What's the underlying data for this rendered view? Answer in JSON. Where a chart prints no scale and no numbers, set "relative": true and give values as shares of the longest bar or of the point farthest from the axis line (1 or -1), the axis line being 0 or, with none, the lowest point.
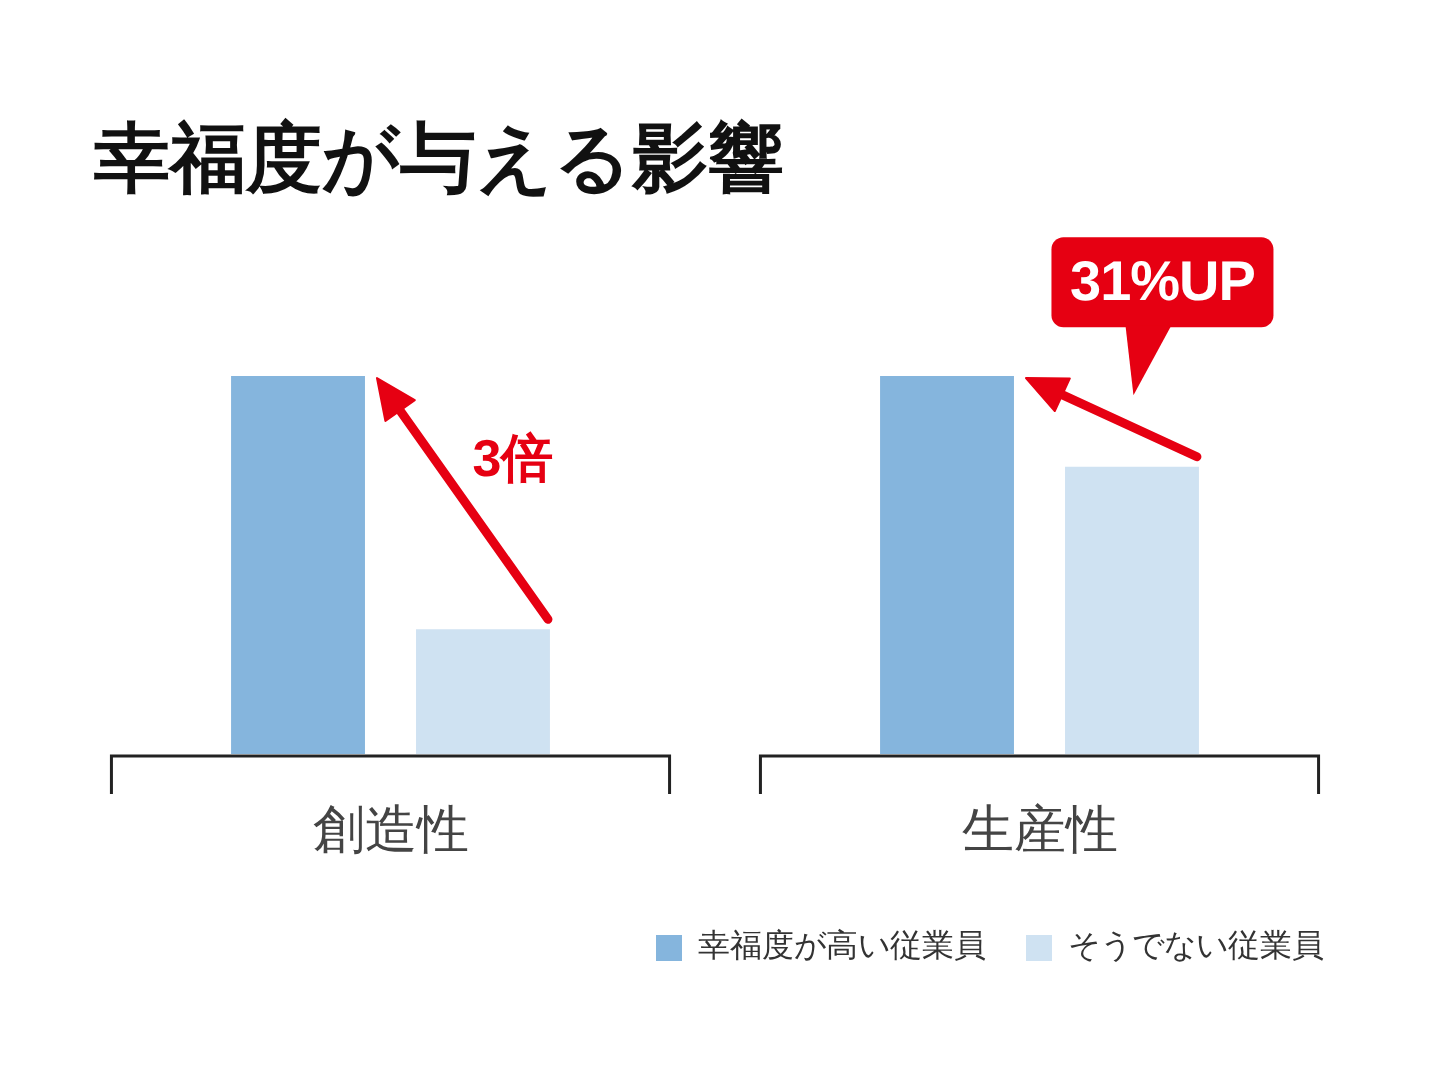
{
  "chart_data": {
    "type": "bar",
    "title": "幸福度が与える影響",
    "categories": [
      "創造性",
      "生産性"
    ],
    "series": [
      {
        "name": "幸福度が高い従業員",
        "color": "#85b5dd",
        "values": [
          1,
          1
        ]
      },
      {
        "name": "そうでない従業員",
        "color": "#cfe2f2",
        "values": [
          0.33,
          0.76
        ]
      }
    ],
    "relative": true,
    "legend": "bottom right",
    "annotations": [
      "3倍",
      "31%UP"
    ]
  }
}
